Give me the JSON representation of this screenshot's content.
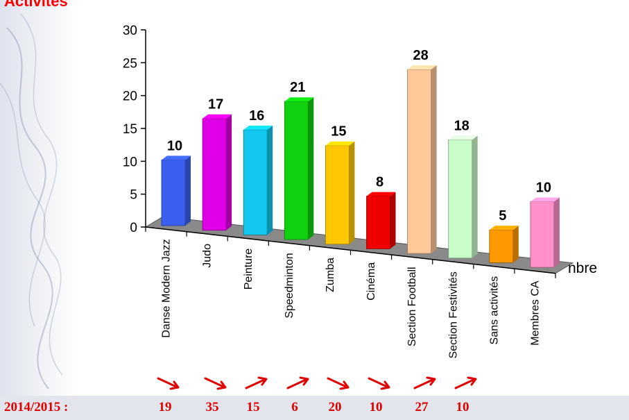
{
  "page": {
    "title": "Activités"
  },
  "chart_data": {
    "type": "bar",
    "title": "",
    "xlabel": "",
    "ylabel": "",
    "ylim": [
      0,
      30
    ],
    "yticks": [
      0,
      5,
      10,
      15,
      20,
      25,
      30
    ],
    "categories": [
      "Danse Modern Jazz",
      "Judo",
      "Peinture",
      "Speedminton",
      "Zumba",
      "Cinéma",
      "Section Football",
      "Section Festivités",
      "Sans activités",
      "Membres CA"
    ],
    "series": [
      {
        "name": "nbre",
        "values": [
          10,
          17,
          16,
          21,
          15,
          8,
          28,
          18,
          5,
          10
        ],
        "colors": [
          "#3b60f0",
          "#e000e8",
          "#12c8f0",
          "#10d010",
          "#ffc800",
          "#ee0000",
          "#ffc898",
          "#c8fcc8",
          "#ff9900",
          "#ff90cc"
        ]
      }
    ],
    "legend": "right",
    "grid": false
  },
  "footer": {
    "label": "2014/2015 :",
    "values": [
      "19",
      "35",
      "15",
      "6",
      "20",
      "10",
      "27",
      "10"
    ],
    "arrows": [
      "down",
      "down",
      "up",
      "up",
      "down",
      "down",
      "up",
      "up"
    ]
  }
}
